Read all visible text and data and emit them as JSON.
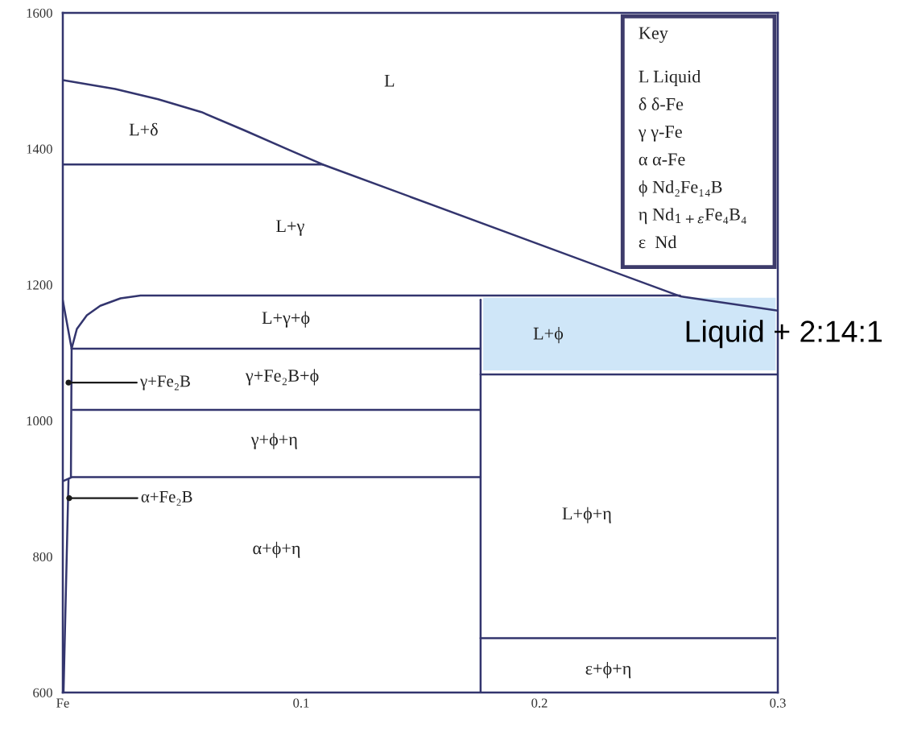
{
  "chart_data": {
    "type": "line",
    "xlim": [
      0,
      0.3
    ],
    "xticks": [
      {
        "value": 0,
        "label": "Fe"
      },
      0.1,
      0.2,
      0.3
    ],
    "ylim": [
      600,
      1600
    ],
    "yticks": [
      600,
      800,
      1000,
      1200,
      1400,
      1600
    ],
    "series": [
      {
        "color": "#33356e",
        "x": [
          0,
          0.022,
          0.04,
          0.0582,
          0.0763,
          0.0945,
          0.109,
          0.259,
          0.3
        ],
        "values": [
          1501,
          1488,
          1473,
          1454,
          1427,
          1399,
          1377,
          1183,
          1162
        ]
      },
      {
        "color": "#33356e",
        "x": [
          0,
          0.109
        ],
        "values": [
          1377,
          1377
        ]
      },
      {
        "color": "#33356e",
        "x": [
          0,
          0.0037,
          0.0034
        ],
        "values": [
          1177,
          1106,
          917
        ]
      },
      {
        "color": "#33356e",
        "x": [
          0.0037,
          0.0059,
          0.0101,
          0.0157,
          0.0242,
          0.0326,
          0.041,
          0.259
        ],
        "values": [
          1106,
          1135,
          1155,
          1169,
          1180,
          1184,
          1184,
          1184
        ]
      },
      {
        "color": "#33356e",
        "x": [
          0.0037,
          0.1753
        ],
        "values": [
          1106,
          1106
        ]
      },
      {
        "color": "#33356e",
        "x": [
          0.0042,
          0.1753
        ],
        "values": [
          1016,
          1016
        ]
      },
      {
        "color": "#33356e",
        "x": [
          0,
          0.004,
          0.1753
        ],
        "values": [
          911,
          917,
          917
        ]
      },
      {
        "color": "#33356e",
        "x": [
          0.0003,
          0.0024
        ],
        "values": [
          600,
          914
        ]
      },
      {
        "color": "#33356e",
        "x": [
          0.1753,
          0.1753
        ],
        "values": [
          1178,
          600
        ]
      },
      {
        "color": "#33356e",
        "x": [
          0.1753,
          0.3
        ],
        "values": [
          1068,
          1068
        ]
      },
      {
        "color": "#33356e",
        "x": [
          0.1753,
          0.299
        ],
        "values": [
          680,
          680
        ]
      },
      {
        "type": "scatter",
        "color": "#1a1a1a",
        "marker": "circle",
        "x": [
          0.0024,
          0.0027
        ],
        "values": [
          1056,
          886
        ]
      }
    ],
    "bands": [
      {
        "axis": "y",
        "from": 1074,
        "to": 1181,
        "label": "Liquid + 2:14:1",
        "color": "#cfe6f8"
      }
    ],
    "annotations": [
      "Key",
      "L Liquid",
      "δ δ-Fe",
      "γ γ-Fe",
      "α α-Fe",
      "ϕ Nd₂Fe₁₄B",
      "η Nd$_{1+ε}$Fe₄B₄",
      "ε  Nd",
      "L",
      "L+δ",
      "L+γ",
      "L+γ+ϕ",
      "γ+Fe₂B+ϕ",
      "γ+ϕ+η",
      "α+ϕ+η",
      "L+ϕ",
      "L+ϕ+η",
      "ε+ϕ+η",
      "γ+Fe₂B",
      "α+Fe₂B"
    ]
  }
}
